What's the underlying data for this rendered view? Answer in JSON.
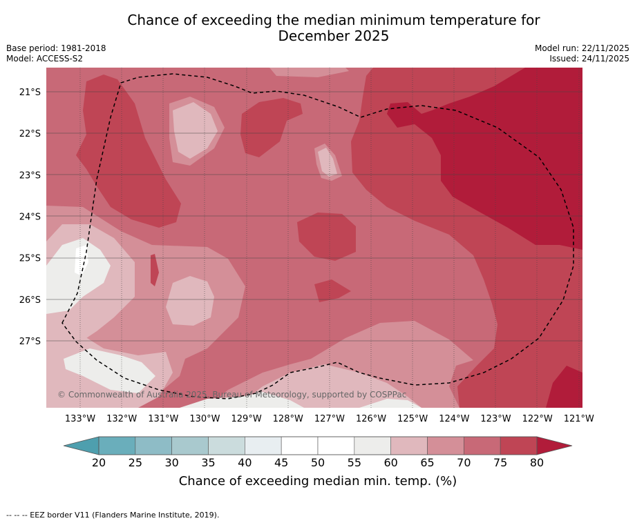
{
  "title_line1": "Chance of exceeding the median minimum temperature for",
  "title_line2": "December 2025",
  "base_period": "Base period: 1981-2018",
  "model": "Model: ACCESS-S2",
  "model_run": "Model run: 22/11/2025",
  "issued": "Issued: 24/11/2025",
  "copyright": "© Commonwealth of Australia 2025, Bureau of Meteorology, supported by COSPPac",
  "footnote": "--  --  -- EEZ border V11 (Flanders Marine Institute, 2019).",
  "map": {
    "lon_labels": [
      "133°W",
      "132°W",
      "131°W",
      "130°W",
      "129°W",
      "128°W",
      "127°W",
      "126°W",
      "125°W",
      "124°W",
      "123°W",
      "122°W",
      "121°W"
    ],
    "lat_labels": [
      "21°S",
      "22°S",
      "23°S",
      "24°S",
      "25°S",
      "26°S",
      "27°S"
    ],
    "colors": {
      "c20_25": "#6aaebb",
      "c25_30": "#8ebcc6",
      "c30_35": "#a9c9ce",
      "c35_40": "#cbdcdd",
      "c40_45": "#e8eef1",
      "c45_50": "#ffffff",
      "c50_55": "#ffffff",
      "c55_60": "#ededeb",
      "c60_65": "#e0b8bd",
      "c65_70": "#d48f98",
      "c70_75": "#c86977",
      "c75_80": "#bf4555",
      "c80p": "#b11c3a"
    }
  },
  "colorbar": {
    "ticks": [
      "20",
      "25",
      "30",
      "35",
      "40",
      "45",
      "50",
      "55",
      "60",
      "65",
      "70",
      "75",
      "80"
    ],
    "title": "Chance of exceeding median min. temp. (%)",
    "under_color": "#4e9fae",
    "over_color": "#b11c3a",
    "bins": [
      "#6aaebb",
      "#8ebcc6",
      "#a9c9ce",
      "#cbdcdd",
      "#e8eef1",
      "#ffffff",
      "#ffffff",
      "#ededeb",
      "#e0b8bd",
      "#d48f98",
      "#c86977",
      "#bf4555"
    ]
  }
}
